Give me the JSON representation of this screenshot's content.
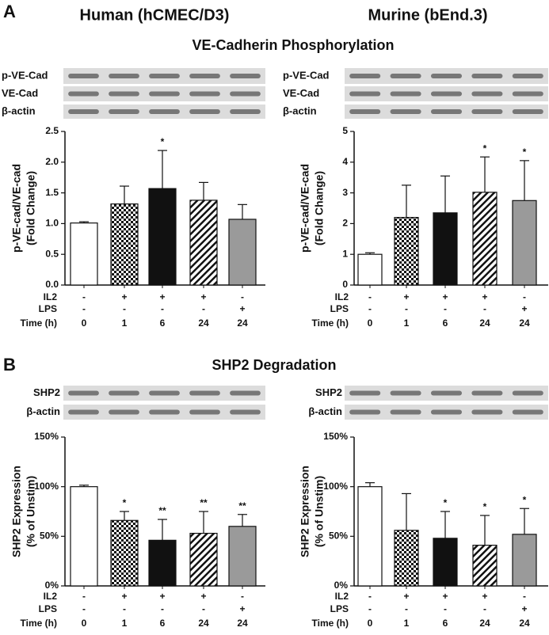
{
  "panels": [
    {
      "label": "A",
      "title": "VE-Cadherin Phosphorylation",
      "columns": [
        "Human (hCMEC/D3)",
        "Murine (bEnd.3)"
      ],
      "blots": [
        [
          "p-VE-Cad",
          "VE-Cad",
          "β-actin"
        ],
        [
          "p-VE-Cad",
          "VE-Cad",
          "β-actin"
        ]
      ]
    },
    {
      "label": "B",
      "title": "SHP2 Degradation",
      "blots": [
        [
          "SHP2",
          "β-actin"
        ],
        [
          "SHP2",
          "β-actin"
        ]
      ]
    }
  ],
  "chart_data": [
    {
      "type": "bar",
      "y_label": [
        "p-VE-cad/VE-cad",
        "(Fold Change)"
      ],
      "values": [
        1.01,
        1.32,
        1.57,
        1.38,
        1.07
      ],
      "errors": [
        0.02,
        0.29,
        0.62,
        0.29,
        0.24
      ],
      "significance": [
        null,
        null,
        "*",
        null,
        null
      ],
      "fills": [
        "white",
        "checker",
        "black",
        "hatch",
        "gray"
      ],
      "ylim": [
        0,
        2.5
      ],
      "yticks": [
        {
          "value": 0,
          "label": "0.0"
        },
        0.5,
        {
          "value": 1,
          "label": "1.0"
        },
        1.5,
        {
          "value": 2,
          "label": "2.0"
        },
        2.5
      ],
      "conditions": [
        {
          "label": "IL2",
          "values": [
            "-",
            "+",
            "+",
            "+",
            "-"
          ]
        },
        {
          "label": "LPS",
          "values": [
            "-",
            "-",
            "-",
            "-",
            "+"
          ]
        },
        {
          "label": "Time (h)",
          "values": [
            "0",
            "1",
            "6",
            "24",
            "24"
          ]
        }
      ]
    },
    {
      "type": "bar",
      "y_label": [
        "p-VE-cad/VE-cad",
        "(Fold Change)"
      ],
      "values": [
        1.0,
        2.2,
        2.35,
        3.02,
        2.75
      ],
      "errors": [
        0.05,
        1.05,
        1.2,
        1.15,
        1.3
      ],
      "significance": [
        null,
        null,
        null,
        "*",
        "*"
      ],
      "fills": [
        "white",
        "checker",
        "black",
        "hatch",
        "gray"
      ],
      "ylim": [
        0,
        5
      ],
      "yticks": [
        0,
        1,
        2,
        3,
        4,
        5
      ],
      "conditions": [
        {
          "label": "IL2",
          "values": [
            "-",
            "+",
            "+",
            "+",
            "-"
          ]
        },
        {
          "label": "LPS",
          "values": [
            "-",
            "-",
            "-",
            "-",
            "+"
          ]
        },
        {
          "label": "Time (h)",
          "values": [
            "0",
            "1",
            "6",
            "24",
            "24"
          ]
        }
      ]
    },
    {
      "type": "bar",
      "y_label": [
        "SHP2 Expression",
        "(% of Unstim)"
      ],
      "values": [
        100,
        66,
        46,
        53,
        60
      ],
      "errors": [
        1.5,
        9,
        21,
        22,
        12
      ],
      "significance": [
        null,
        "*",
        "**",
        "**",
        "**"
      ],
      "fills": [
        "white",
        "checker",
        "black",
        "hatch",
        "gray"
      ],
      "ylim": [
        0,
        150
      ],
      "yticks": [
        {
          "value": 0,
          "label": "0%"
        },
        {
          "value": 50,
          "label": "50%"
        },
        {
          "value": 100,
          "label": "100%"
        },
        {
          "value": 150,
          "label": "150%"
        }
      ],
      "conditions": [
        {
          "label": "IL2",
          "values": [
            "-",
            "+",
            "+",
            "+",
            "-"
          ]
        },
        {
          "label": "LPS",
          "values": [
            "-",
            "-",
            "-",
            "-",
            "+"
          ]
        },
        {
          "label": "Time (h)",
          "values": [
            "0",
            "1",
            "6",
            "24",
            "24"
          ]
        }
      ]
    },
    {
      "type": "bar",
      "y_label": [
        "SHP2 Expression",
        "(% of Unstim)"
      ],
      "values": [
        100,
        56,
        48,
        41,
        52
      ],
      "errors": [
        4,
        37,
        27,
        30,
        26
      ],
      "significance": [
        null,
        null,
        "*",
        "*",
        "*"
      ],
      "fills": [
        "white",
        "checker",
        "black",
        "hatch",
        "gray"
      ],
      "ylim": [
        0,
        150
      ],
      "yticks": [
        {
          "value": 0,
          "label": "0%"
        },
        {
          "value": 50,
          "label": "50%"
        },
        {
          "value": 100,
          "label": "100%"
        },
        {
          "value": 150,
          "label": "150%"
        }
      ],
      "conditions": [
        {
          "label": "IL2",
          "values": [
            "-",
            "+",
            "+",
            "+",
            "-"
          ]
        },
        {
          "label": "LPS",
          "values": [
            "-",
            "-",
            "-",
            "-",
            "+"
          ]
        },
        {
          "label": "Time (h)",
          "values": [
            "0",
            "1",
            "6",
            "24",
            "24"
          ]
        }
      ]
    }
  ]
}
